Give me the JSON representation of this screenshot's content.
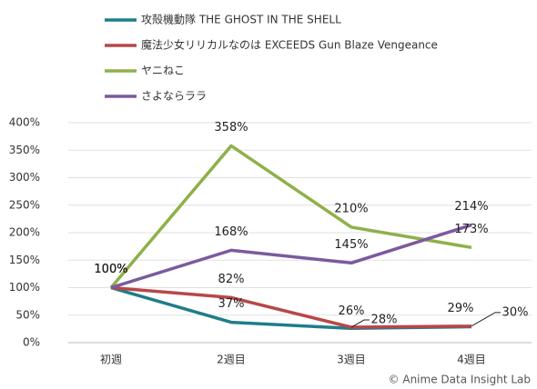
{
  "chart_data": {
    "type": "line",
    "categories": [
      "初週",
      "2週目",
      "3週目",
      "4週目"
    ],
    "series": [
      {
        "name": "攻殻機動隊 THE GHOST IN THE SHELL",
        "color": "#1f7d8a",
        "values": [
          100,
          37,
          26,
          29
        ],
        "value_labels": [
          "100%",
          "37%",
          "26%",
          "29%"
        ]
      },
      {
        "name": "魔法少女リリカルなのは EXCEEDS Gun Blaze Vengeance",
        "color": "#b84748",
        "values": [
          100,
          82,
          28,
          30
        ],
        "value_labels": [
          "100%",
          "82%",
          "28%",
          "30%"
        ]
      },
      {
        "name": "ヤニねこ",
        "color": "#8fb04a",
        "values": [
          100,
          358,
          210,
          173
        ],
        "value_labels": [
          "100%",
          "358%",
          "210%",
          "173%"
        ]
      },
      {
        "name": "さよならララ",
        "color": "#7a5a9e",
        "values": [
          100,
          168,
          145,
          214
        ],
        "value_labels": [
          "100%",
          "168%",
          "145%",
          "214%"
        ]
      }
    ],
    "ylim": [
      0,
      400
    ],
    "yticks": [
      {
        "value": 0,
        "label": "0%"
      },
      {
        "value": 50,
        "label": "50%"
      },
      {
        "value": 100,
        "label": "100%"
      },
      {
        "value": 150,
        "label": "150%"
      },
      {
        "value": 200,
        "label": "200%"
      },
      {
        "value": 250,
        "label": "250%"
      },
      {
        "value": 300,
        "label": "300%"
      },
      {
        "value": 350,
        "label": "350%"
      },
      {
        "value": 400,
        "label": "400%"
      }
    ],
    "grid": true,
    "legend": "top-left",
    "source": "© Anime Data Insight Lab"
  }
}
